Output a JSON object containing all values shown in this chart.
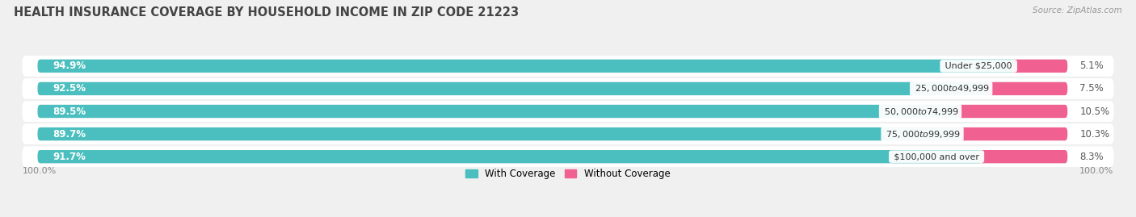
{
  "title": "HEALTH INSURANCE COVERAGE BY HOUSEHOLD INCOME IN ZIP CODE 21223",
  "source": "Source: ZipAtlas.com",
  "categories": [
    "Under $25,000",
    "$25,000 to $49,999",
    "$50,000 to $74,999",
    "$75,000 to $99,999",
    "$100,000 and over"
  ],
  "with_coverage": [
    94.9,
    92.5,
    89.5,
    89.7,
    91.7
  ],
  "without_coverage": [
    5.1,
    7.5,
    10.5,
    10.3,
    8.3
  ],
  "color_with": "#4bbfbf",
  "color_without": "#f06090",
  "color_track": "#dcdcdc",
  "color_row_odd": "#f0f0f0",
  "color_row_even": "#e8e8e8",
  "background_color": "#f0f0f0",
  "title_fontsize": 10.5,
  "source_fontsize": 7.5,
  "bar_label_fontsize": 8.5,
  "cat_label_fontsize": 8,
  "legend_fontsize": 8.5,
  "bottom_label": "100.0%"
}
